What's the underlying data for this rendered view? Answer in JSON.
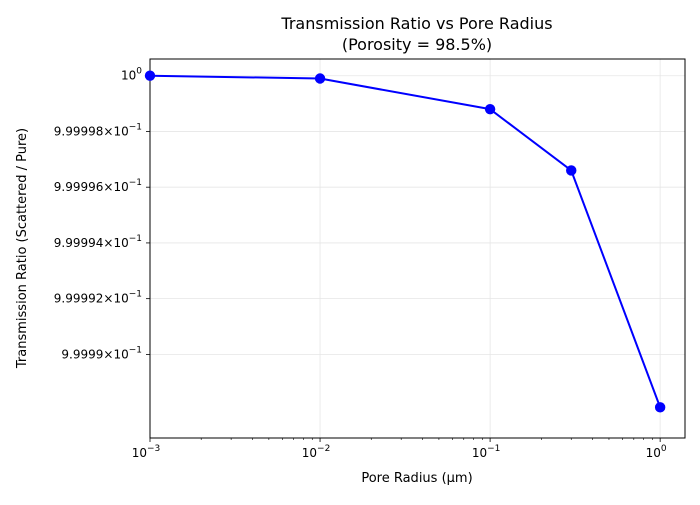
{
  "chart_data": {
    "type": "line",
    "title": "Transmission Ratio vs Pore Radius",
    "subtitle": "(Porosity = 98.5%)",
    "xlabel": "Pore Radius (μm)",
    "ylabel": "Transmission Ratio (Scattered / Pure)",
    "xscale": "log",
    "yscale": "log",
    "xlim": [
      0.001,
      1.4
    ],
    "ylim": [
      0.999987,
      1.0000006
    ],
    "grid": true,
    "line_color": "#0000ff",
    "x_ticks": [
      {
        "value": 0.001,
        "base": "10",
        "exp": "−3"
      },
      {
        "value": 0.01,
        "base": "10",
        "exp": "−2"
      },
      {
        "value": 0.1,
        "base": "10",
        "exp": "−1"
      },
      {
        "value": 1,
        "base": "10",
        "exp": "0"
      }
    ],
    "y_ticks": [
      {
        "value": 1.0,
        "mant": "",
        "base": "10",
        "exp": "0"
      },
      {
        "value": 0.999998,
        "mant": "9.99998",
        "base": "10",
        "exp": "−1"
      },
      {
        "value": 0.999996,
        "mant": "9.99996",
        "base": "10",
        "exp": "−1"
      },
      {
        "value": 0.999994,
        "mant": "9.99994",
        "base": "10",
        "exp": "−1"
      },
      {
        "value": 0.999992,
        "mant": "9.99992",
        "base": "10",
        "exp": "−1"
      },
      {
        "value": 0.99999,
        "mant": "9.9999",
        "base": "10",
        "exp": "−1"
      }
    ],
    "series": [
      {
        "x": [
          0.001,
          0.01,
          0.1,
          0.3,
          1.0
        ],
        "y": [
          1.0,
          0.9999999,
          0.9999988,
          0.9999966,
          0.9999881
        ]
      }
    ]
  }
}
